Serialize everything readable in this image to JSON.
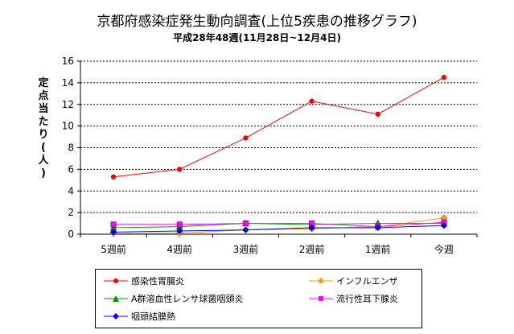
{
  "title": "京都府感染症発生動向調査(上位5疾患の推移グラフ)",
  "subtitle": "平成28年48週(11月28日~12月4日)",
  "chart_data": {
    "type": "line",
    "ylabel": "定点当たり(人)",
    "ylim": [
      0,
      16
    ],
    "yticks": [
      0,
      2,
      4,
      6,
      8,
      10,
      12,
      14,
      16
    ],
    "categories": [
      "5週前",
      "4週前",
      "3週前",
      "2週前",
      "1週前",
      "今週"
    ],
    "grid": true,
    "legend_position": "bottom",
    "series": [
      {
        "name": "感染性胃腸炎",
        "color": "#ff0000",
        "marker": "circle",
        "values": [
          5.3,
          6.0,
          8.9,
          12.3,
          11.1,
          14.5
        ]
      },
      {
        "name": "インフルエンザ",
        "color": "#ff9900",
        "marker": "diamond",
        "values": [
          0.1,
          0.1,
          0.4,
          0.5,
          0.7,
          1.5
        ]
      },
      {
        "name": "A群溶血性レンサ球菌咽頭炎",
        "color": "#009900",
        "marker": "triangle",
        "values": [
          0.6,
          0.7,
          1.0,
          0.9,
          1.0,
          1.0
        ]
      },
      {
        "name": "流行性耳下腺炎",
        "color": "#ff00ff",
        "marker": "square",
        "values": [
          0.9,
          0.9,
          1.0,
          1.0,
          0.7,
          1.1
        ]
      },
      {
        "name": "咽頭結膜熱",
        "color": "#0000ff",
        "marker": "diamond",
        "values": [
          0.2,
          0.3,
          0.4,
          0.6,
          0.6,
          0.8
        ]
      }
    ]
  }
}
